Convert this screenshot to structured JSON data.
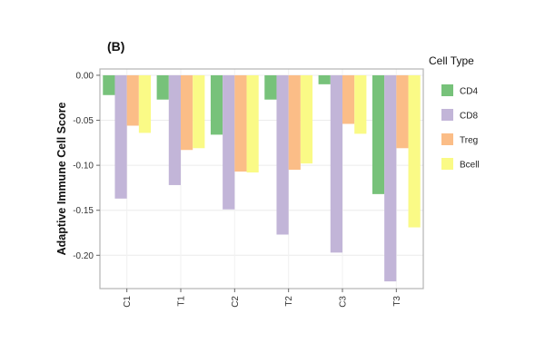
{
  "panel_label": "(B)",
  "chart_data": {
    "type": "bar",
    "categories": [
      "C1",
      "T1",
      "C2",
      "T2",
      "C3",
      "T3"
    ],
    "series": [
      {
        "name": "CD4",
        "color": "#77c27a",
        "values": [
          -0.022,
          -0.027,
          -0.066,
          -0.027,
          -0.01,
          -0.132
        ]
      },
      {
        "name": "CD8",
        "color": "#c2b5d8",
        "values": [
          -0.137,
          -0.122,
          -0.149,
          -0.177,
          -0.197,
          -0.229
        ]
      },
      {
        "name": "Treg",
        "color": "#fbbd87",
        "values": [
          -0.056,
          -0.083,
          -0.107,
          -0.105,
          -0.054,
          -0.081
        ]
      },
      {
        "name": "Bcell",
        "color": "#fafa86",
        "values": [
          -0.064,
          -0.081,
          -0.108,
          -0.098,
          -0.065,
          -0.169
        ]
      }
    ],
    "ylabel": "Adaptive Immune Cell Score",
    "xlabel": "",
    "ylim": [
      -0.237,
      0.007
    ],
    "yticks": [
      0.0,
      -0.05,
      -0.1,
      -0.15,
      -0.2
    ],
    "ytick_labels": [
      "0.00",
      "-0.05",
      "-0.10",
      "-0.15",
      "-0.20"
    ],
    "grid": true,
    "legend": {
      "title": "Cell Type",
      "placement": "right"
    }
  }
}
